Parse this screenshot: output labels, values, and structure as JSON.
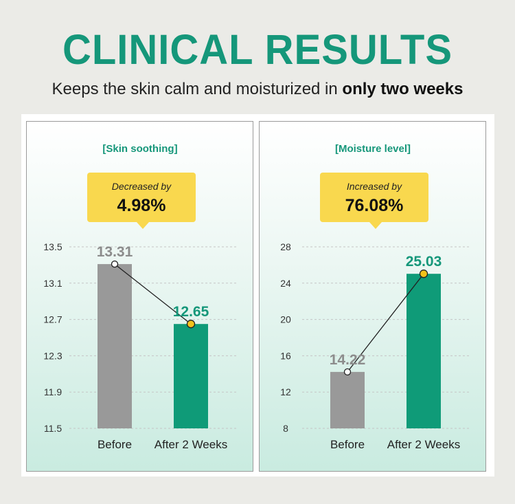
{
  "header": {
    "title": "CLINICAL RESULTS",
    "subtitle_prefix": "Keeps the skin calm and moisturized in ",
    "subtitle_bold": "only two weeks"
  },
  "colors": {
    "accent": "#15977a",
    "bar_before": "#999999",
    "bar_after": "#0f9b78",
    "callout": "#f9d84e",
    "marker_after": "#f2c21b"
  },
  "chart_data": [
    {
      "type": "bar",
      "title": "[Skin soothing]",
      "callout_label": "Decreased by",
      "callout_value": "4.98%",
      "categories": [
        "Before",
        "After 2 Weeks"
      ],
      "values": [
        13.31,
        12.65
      ],
      "value_labels": [
        "13.31",
        "12.65"
      ],
      "yticks": [
        "13.5",
        "13.1",
        "12.7",
        "12.3",
        "11.9",
        "11.5"
      ],
      "ylim": [
        11.5,
        13.5
      ],
      "grid": true,
      "connector_line": true
    },
    {
      "type": "bar",
      "title": "[Moisture level]",
      "callout_label": "Increased by",
      "callout_value": "76.08%",
      "categories": [
        "Before",
        "After 2 Weeks"
      ],
      "values": [
        14.22,
        25.03
      ],
      "value_labels": [
        "14.22",
        "25.03"
      ],
      "yticks": [
        "28",
        "24",
        "20",
        "16",
        "12",
        "8"
      ],
      "ylim": [
        8,
        28
      ],
      "grid": true,
      "connector_line": true
    }
  ]
}
